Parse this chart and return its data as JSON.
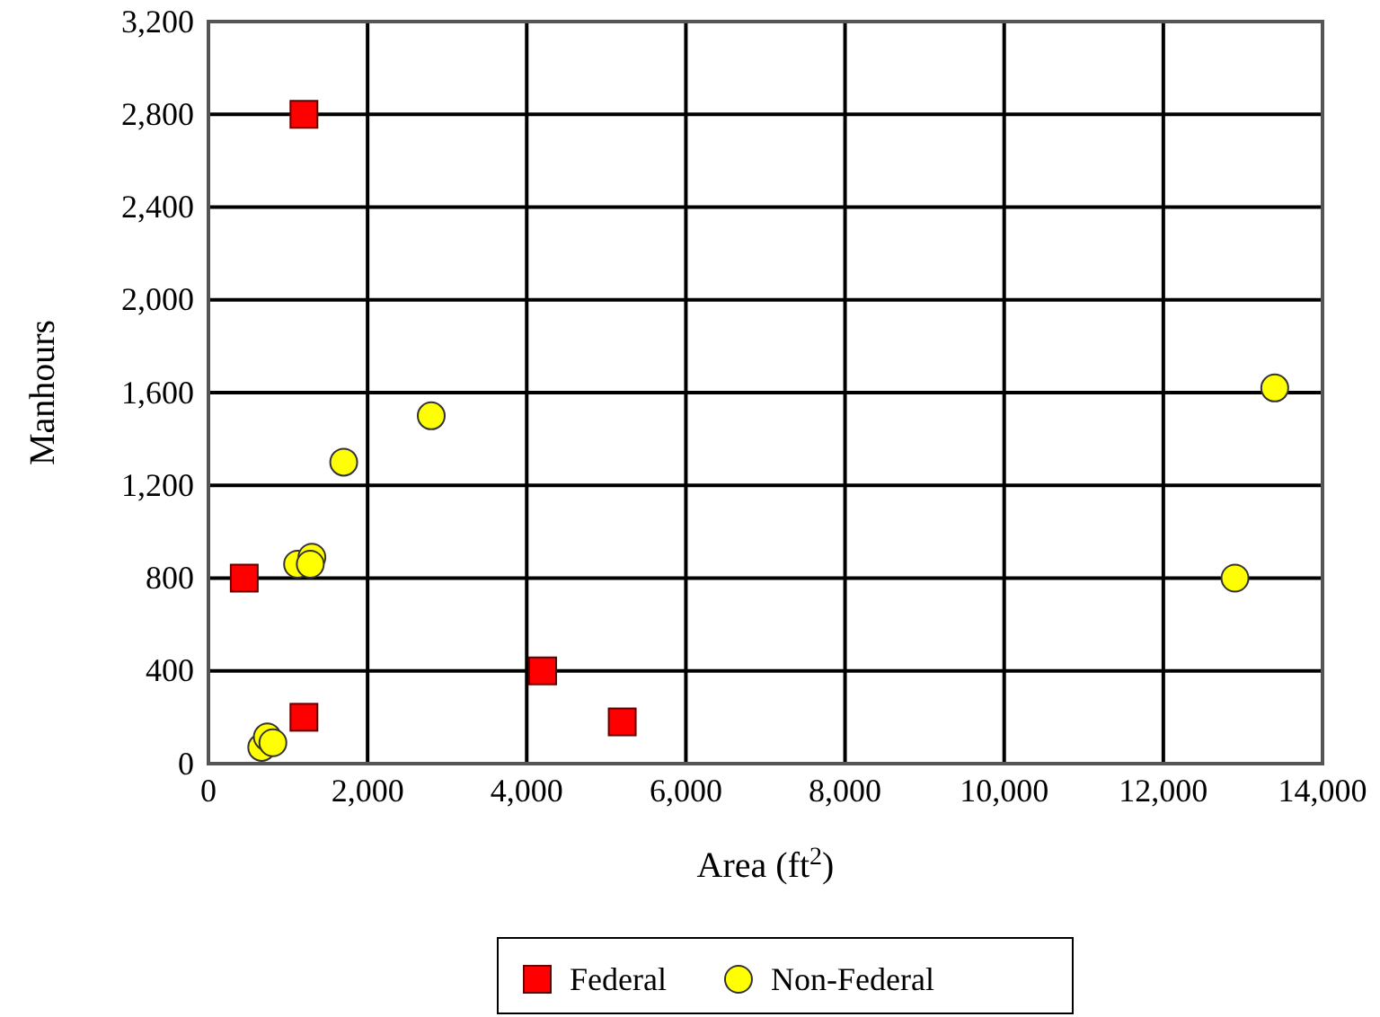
{
  "chart_data": {
    "type": "scatter",
    "xlabel": "Area (ft$^{2}$)",
    "ylabel": "Manhours",
    "xlim": [
      0,
      14000
    ],
    "ylim": [
      0,
      3200
    ],
    "xticks": [
      {
        "value": 0,
        "label": "0"
      },
      {
        "value": 2000,
        "label": "2,000"
      },
      {
        "value": 4000,
        "label": "4,000"
      },
      {
        "value": 6000,
        "label": "6,000"
      },
      {
        "value": 8000,
        "label": "8,000"
      },
      {
        "value": 10000,
        "label": "10,000"
      },
      {
        "value": 12000,
        "label": "12,000"
      },
      {
        "value": 14000,
        "label": "14,000"
      }
    ],
    "yticks": [
      {
        "value": 0,
        "label": "0"
      },
      {
        "value": 400,
        "label": "400"
      },
      {
        "value": 800,
        "label": "800"
      },
      {
        "value": 1200,
        "label": "1,200"
      },
      {
        "value": 1600,
        "label": "1,600"
      },
      {
        "value": 2000,
        "label": "2,000"
      },
      {
        "value": 2400,
        "label": "2,400"
      },
      {
        "value": 2800,
        "label": "2,800"
      },
      {
        "value": 3200,
        "label": "3,200"
      }
    ],
    "grid": true,
    "legend": "bottom",
    "series": [
      {
        "name": "Federal",
        "color": "#ff0000",
        "marker": "square",
        "x": [
          1200,
          450,
          1200,
          4200,
          5200
        ],
        "values": [
          2800,
          800,
          200,
          400,
          180
        ]
      },
      {
        "name": "Non-Federal",
        "color": "#ffff00",
        "marker": "circle",
        "x": [
          670,
          740,
          810,
          1120,
          1300,
          1280,
          1700,
          2800,
          12900,
          13400
        ],
        "values": [
          70,
          115,
          90,
          860,
          890,
          860,
          1300,
          1500,
          800,
          1620
        ]
      }
    ]
  }
}
